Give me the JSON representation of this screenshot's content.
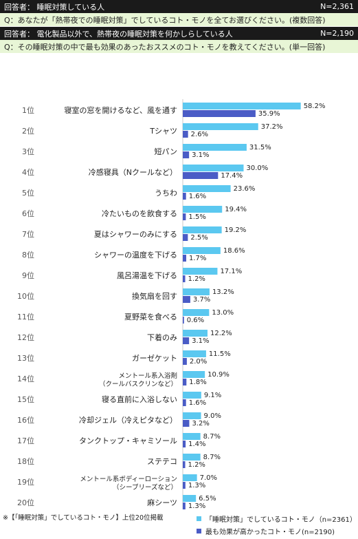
{
  "header": {
    "respondent1_label": "回答者： 睡眠対策している人",
    "respondent1_n": "N=2,361",
    "question1": "Q：あなたが「熱帯夜での睡眠対策」でしているコト・モノを全てお選びください。(複数回答)",
    "respondent2_label": "回答者： 電化製品以外で、熱帯夜の睡眠対策を何かしらしている人",
    "respondent2_n": "N=2,190",
    "question2": "Q：その睡眠対策の中で最も効果のあったおススメのコト・モノを教えてください。(単一回答)"
  },
  "footnote": "※【「睡眠対策」でしているコト・モノ】上位20位掲載",
  "legend": {
    "items": [
      {
        "label": "「睡眠対策」でしているコト・モノ（n=2361）",
        "color": "#5bc8f0"
      },
      {
        "label": "最も効果が高かったコト・モノ(n=2190)",
        "color": "#4a5cc6"
      }
    ]
  },
  "chart_data": {
    "type": "bar",
    "orientation": "horizontal",
    "xlim": [
      0,
      100
    ],
    "ranks": [
      "1位",
      "2位",
      "3位",
      "4位",
      "5位",
      "6位",
      "7位",
      "8位",
      "9位",
      "10位",
      "11位",
      "12位",
      "13位",
      "14位",
      "15位",
      "16位",
      "17位",
      "18位",
      "19位",
      "20位"
    ],
    "categories": [
      "寝室の窓を開けるなど、風を通す",
      "Tシャツ",
      "短パン",
      "冷感寝具（Nクールなど）",
      "うちわ",
      "冷たいものを飲食する",
      "夏はシャワーのみにする",
      "シャワーの温度を下げる",
      "風呂湯温を下げる",
      "換気扇を回す",
      "夏野菜を食べる",
      "下着のみ",
      "ガーゼケット",
      "メントール系入浴剤 （クールバスクリンなど）",
      "寝る直前に入浴しない",
      "冷却ジェル（冷えピタなど）",
      "タンクトップ・キャミソール",
      "ステテコ",
      "メントール系ボディーローション （シーブリーズなど）",
      "麻シーツ"
    ],
    "series": [
      {
        "name": "「睡眠対策」でしているコト・モノ（n=2361）",
        "color": "#5bc8f0",
        "values": [
          58.2,
          37.2,
          31.5,
          30.0,
          23.6,
          19.4,
          19.2,
          18.6,
          17.1,
          13.2,
          13.0,
          12.2,
          11.5,
          10.9,
          9.1,
          9.0,
          8.7,
          8.7,
          7.0,
          6.5
        ],
        "labels": [
          "58.2%",
          "37.2%",
          "31.5%",
          "30.0%",
          "23.6%",
          "19.4%",
          "19.2%",
          "18.6%",
          "17.1%",
          "13.2%",
          "13.0%",
          "12.2%",
          "11.5%",
          "10.9%",
          "9.1%",
          "9.0%",
          "8.7%",
          "8.7%",
          "7.0%",
          "6.5%"
        ]
      },
      {
        "name": "最も効果が高かったコト・モノ(n=2190)",
        "color": "#4a5cc6",
        "values": [
          35.9,
          2.6,
          3.1,
          17.4,
          1.6,
          1.5,
          2.5,
          1.7,
          1.2,
          3.7,
          0.6,
          3.1,
          2.0,
          1.8,
          1.6,
          3.2,
          1.4,
          1.2,
          1.3,
          1.3
        ],
        "labels": [
          "35.9%",
          "2.6%",
          "3.1%",
          "17.4%",
          "1.6%",
          "1.5%",
          "2.5%",
          "1.7%",
          "1.2%",
          "3.7%",
          "0.6%",
          "3.1%",
          "2.0%",
          "1.8%",
          "1.6%",
          "3.2%",
          "1.4%",
          "1.2%",
          "1.3%",
          "1.3%"
        ]
      }
    ]
  }
}
